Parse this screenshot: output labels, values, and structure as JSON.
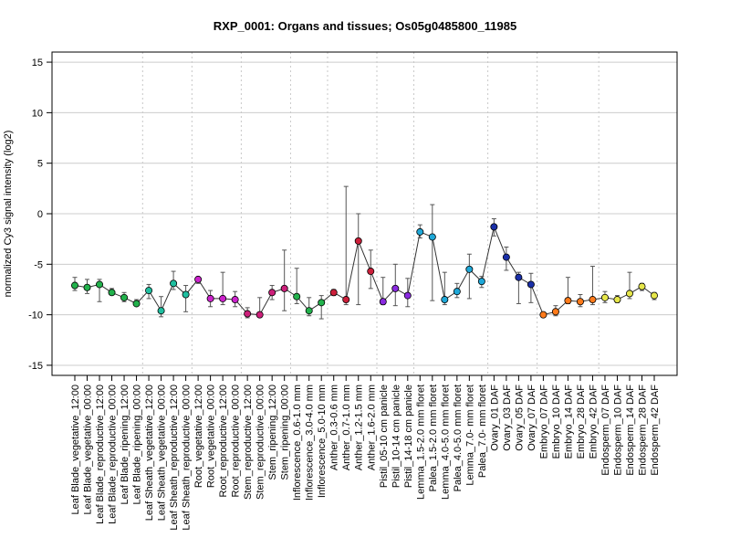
{
  "chart_data": {
    "type": "scatter",
    "title": "RXP_0001: Organs and tissues; Os05g0485800_11985",
    "xlabel": "",
    "ylabel": "normalized Cy3 signal intensity (log2)",
    "ylim": [
      -16,
      16
    ],
    "yticks": [
      15,
      10,
      5,
      0,
      -5,
      -10,
      -15
    ],
    "grid": true,
    "connected": true,
    "categories": [
      "Leaf Blade_vegetative_12:00",
      "Leaf Blade_vegetative_00:00",
      "Leaf Blade_reproductive_12:00",
      "Leaf Blade_reproductive_00:00",
      "Leaf Blade_ripening_12:00",
      "Leaf Blade_ripening_00:00",
      "Leaf Sheath_vegetative_12:00",
      "Leaf Sheath_vegetative_00:00",
      "Leaf Sheath_reproductive_12:00",
      "Leaf Sheath_reproductive_00:00",
      "Root_vegetative_12:00",
      "Root_vegetative_00:00",
      "Root_reproductive_12:00",
      "Root_reproductive_00:00",
      "Stem_reproductive_12:00",
      "Stem_reproductive_00:00",
      "Stem_ripening_12:00",
      "Stem_ripening_00:00",
      "Inflorescence_0.6-1.0 mm",
      "Inflorescence_3.0-4.0 mm",
      "Inflorescence_5.0-10 mm",
      "Anther_0.3-0.6 mm",
      "Anther_0.7-1.0 mm",
      "Anther_1.2-1.5 mm",
      "Anther_1.6-2.0 mm",
      "Pistil_05-10 cm panicle",
      "Pistil_10-14 cm panicle",
      "Pistil_14-18 cm panicle",
      "Lemma_1.5-2.0 mm floret",
      "Palea_1.5-2.0 mm floret",
      "Lemma_4.0-5.0 mm floret",
      "Palea_4.0-5.0 mm floret",
      "Lemma_7.0- mm floret",
      "Palea_7.0- mm floret",
      "Ovary_01 DAF",
      "Ovary_03 DAF",
      "Ovary_05 DAF",
      "Ovary_07 DAF",
      "Embryo_07 DAF",
      "Embryo_10 DAF",
      "Embryo_14 DAF",
      "Embryo_28 DAF",
      "Embryo_42 DAF",
      "Endosperm_07 DAF",
      "Endosperm_10 DAF",
      "Endosperm_14 DAF",
      "Endosperm_28 DAF",
      "Endosperm_42 DAF"
    ],
    "values": [
      -7.1,
      -7.3,
      -7.0,
      -7.8,
      -8.3,
      -8.9,
      -7.6,
      -9.6,
      -6.9,
      -8.0,
      -6.5,
      -8.4,
      -8.4,
      -8.5,
      -9.9,
      -10.0,
      -7.8,
      -7.4,
      -8.2,
      -9.6,
      -8.8,
      -7.8,
      -8.5,
      -2.7,
      -5.7,
      -8.7,
      -7.4,
      -8.1,
      -1.8,
      -2.3,
      -8.5,
      -7.7,
      -5.5,
      -6.7,
      -1.3,
      -4.3,
      -6.3,
      -7.0,
      -10.0,
      -9.7,
      -8.6,
      -8.7,
      -8.5,
      -8.3,
      -8.5,
      -7.9,
      -7.2,
      -8.1
    ],
    "error_high": [
      -6.3,
      -6.5,
      -6.5,
      -7.4,
      -7.8,
      -8.5,
      -7.0,
      -8.2,
      -5.7,
      -7.1,
      -6.3,
      -7.6,
      -5.8,
      -7.7,
      -9.3,
      -8.3,
      -7.1,
      -3.6,
      -5.4,
      -8.3,
      -8.1,
      -7.5,
      2.7,
      0.0,
      -3.6,
      -6.3,
      -5.0,
      -6.4,
      -1.1,
      0.9,
      -5.8,
      -6.9,
      -4.0,
      -6.2,
      -0.5,
      -3.3,
      -5.8,
      -5.9,
      -9.8,
      -9.1,
      -6.3,
      -8.0,
      -5.2,
      -7.7,
      -8.1,
      -5.8,
      -6.9,
      -7.8
    ],
    "error_low": [
      -7.6,
      -7.9,
      -8.7,
      -8.0,
      -8.7,
      -9.1,
      -8.4,
      -10.2,
      -7.5,
      -9.7,
      -6.9,
      -9.2,
      -9.0,
      -9.2,
      -10.3,
      -10.2,
      -8.5,
      -9.6,
      -8.9,
      -10.1,
      -10.4,
      -8.1,
      -9.0,
      -9.0,
      -7.4,
      -9.0,
      -9.1,
      -9.2,
      -2.4,
      -8.6,
      -9.0,
      -8.3,
      -8.4,
      -7.3,
      -2.2,
      -5.6,
      -8.9,
      -8.8,
      -10.2,
      -10.1,
      -8.9,
      -9.2,
      -9.0,
      -8.8,
      -8.8,
      -8.4,
      -7.6,
      -8.5
    ],
    "colors": [
      "#22b24c",
      "#22b24c",
      "#22b24c",
      "#22b24c",
      "#22b24c",
      "#22b24c",
      "#1fbfa0",
      "#1fbfa0",
      "#1fbfa0",
      "#1fbfa0",
      "#cc22cc",
      "#cc22cc",
      "#cc22cc",
      "#cc22cc",
      "#cc1f7a",
      "#cc1f7a",
      "#cc1f7a",
      "#cc1f7a",
      "#22b24c",
      "#22b24c",
      "#22b24c",
      "#cc1f3a",
      "#cc1f3a",
      "#cc1f3a",
      "#cc1f3a",
      "#8a2ae0",
      "#8a2ae0",
      "#8a2ae0",
      "#1fa8d8",
      "#1fa8d8",
      "#1fa8d8",
      "#1fa8d8",
      "#1fa8d8",
      "#1fa8d8",
      "#1a2fa8",
      "#1a2fa8",
      "#1a2fa8",
      "#1a2fa8",
      "#ff7a1a",
      "#ff7a1a",
      "#ff7a1a",
      "#ff7a1a",
      "#ff7a1a",
      "#e6e64a",
      "#e6e64a",
      "#e6e64a",
      "#e6e64a",
      "#e6e64a"
    ],
    "vertical_group_dividers_after_index": [
      5,
      9,
      13,
      17,
      20,
      24,
      27,
      33,
      37,
      42
    ]
  }
}
